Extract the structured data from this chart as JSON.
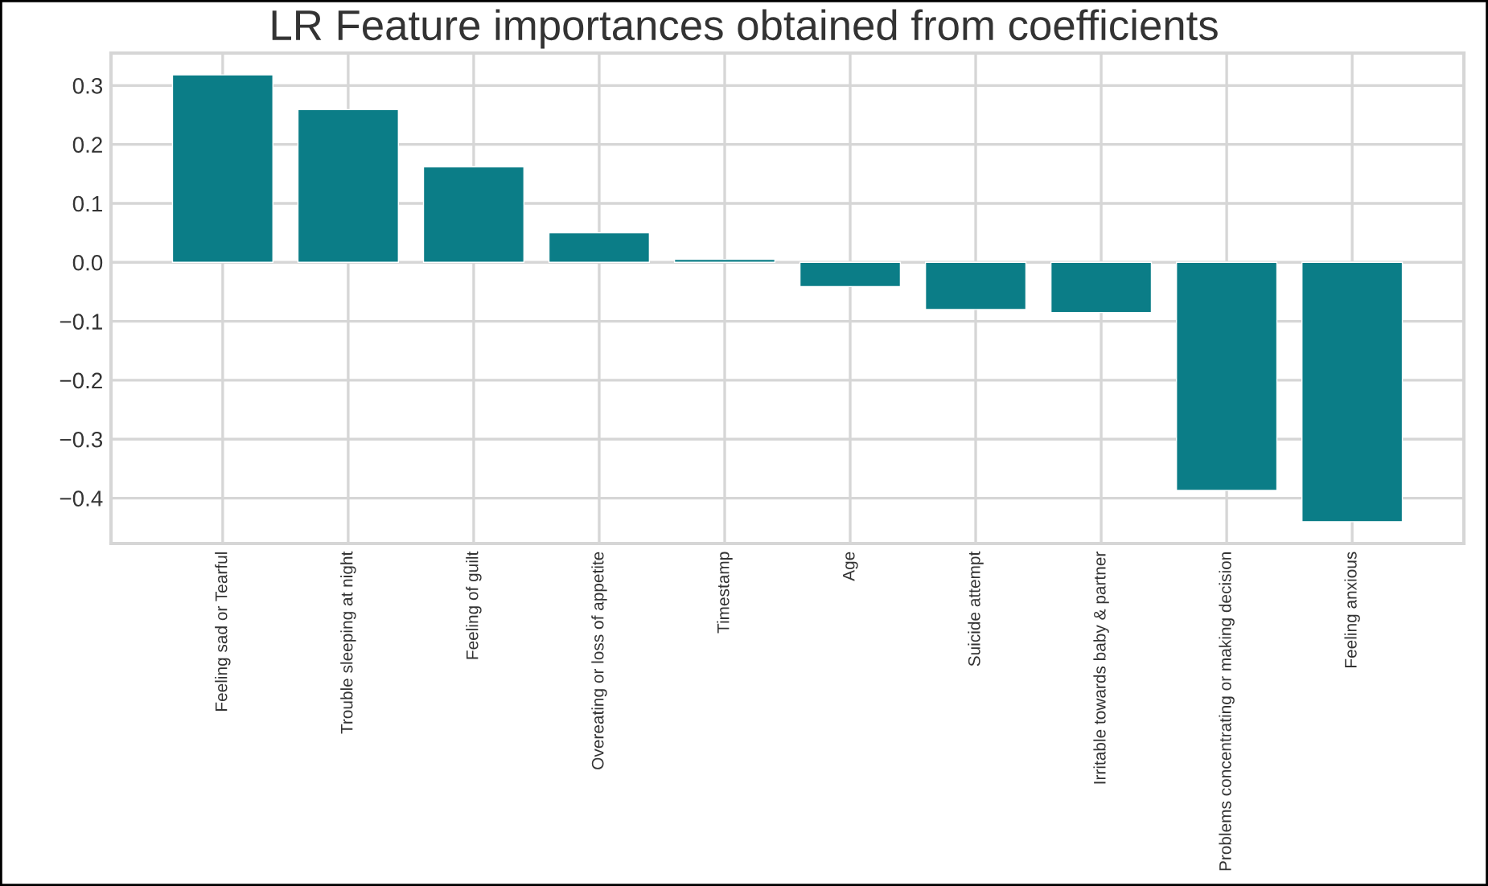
{
  "chart_data": {
    "type": "bar",
    "title": "LR Feature importances obtained from coefficients",
    "categories": [
      "Feeling sad or Tearful",
      "Trouble sleeping at night",
      "Feeling of guilt",
      "Overeating or loss of appetite",
      "Timestamp",
      "Age",
      "Suicide attempt",
      "Irritable towards baby & partner",
      "Problems concentrating or making decision",
      "Feeling anxious"
    ],
    "values": [
      0.318,
      0.259,
      0.162,
      0.05,
      0.005,
      -0.041,
      -0.08,
      -0.085,
      -0.387,
      -0.44
    ],
    "color": "#0b7d87",
    "ylim": [
      -0.477,
      0.355
    ],
    "yticks": [
      -0.4,
      -0.3,
      -0.2,
      -0.1,
      {
        "value": 0,
        "label": "0.0"
      },
      0.1,
      0.2,
      0.3
    ],
    "grid": true
  }
}
